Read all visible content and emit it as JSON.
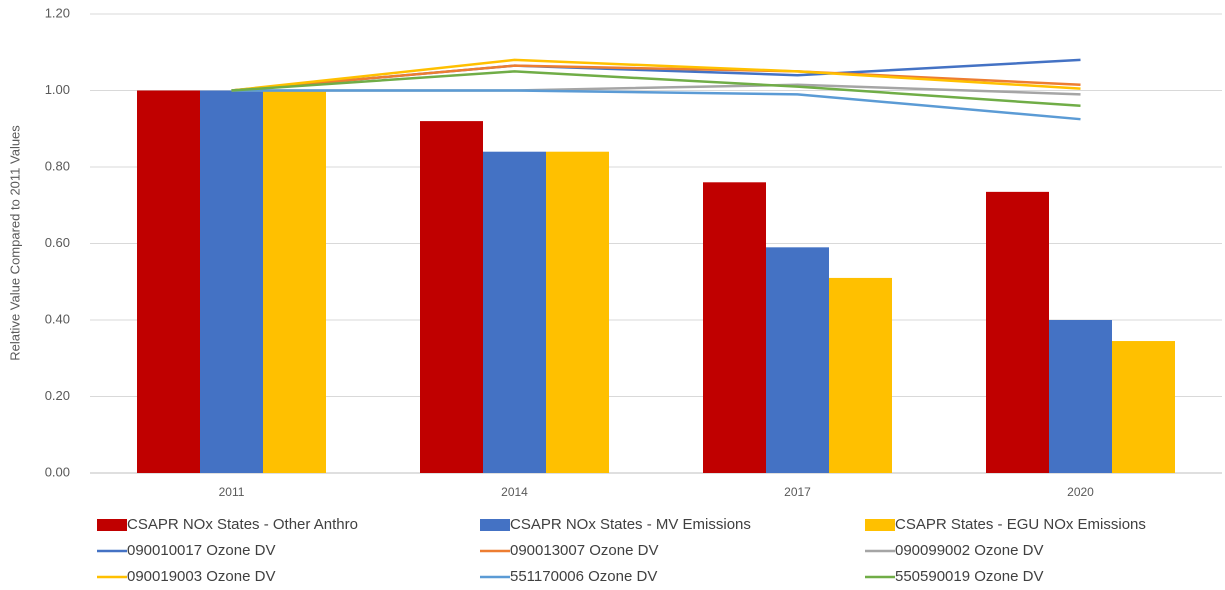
{
  "chart_data": {
    "type": "bar",
    "y_label": "Relative Value Compared to 2011 Values",
    "categories": [
      "2011",
      "2014",
      "2017",
      "2020"
    ],
    "ylim": [
      0,
      1.2
    ],
    "yticks": [
      {
        "value": 0,
        "label": "0.00"
      },
      {
        "value": 0.2,
        "label": "0.20"
      },
      {
        "value": 0.4,
        "label": "0.40"
      },
      {
        "value": 0.6,
        "label": "0.60"
      },
      {
        "value": 0.8,
        "label": "0.80"
      },
      {
        "value": 1.0,
        "label": "1.00"
      },
      {
        "value": 1.2,
        "label": "1.20"
      }
    ],
    "grid": true,
    "legend": "bottom",
    "series": [
      {
        "name": "CSAPR NOx States - Other Anthro",
        "type": "bar",
        "color": "#c00000",
        "values": [
          1.0,
          0.92,
          0.76,
          0.735
        ]
      },
      {
        "name": "CSAPR NOx States - MV Emissions",
        "type": "bar",
        "color": "#4472c4",
        "values": [
          1.0,
          0.84,
          0.59,
          0.4
        ]
      },
      {
        "name": "CSAPR States - EGU NOx Emissions",
        "type": "bar",
        "color": "#ffc000",
        "values": [
          1.0,
          0.84,
          0.51,
          0.345
        ]
      },
      {
        "name": "090010017 Ozone DV",
        "type": "line",
        "color": "#4472c4",
        "values": [
          1.0,
          1.065,
          1.04,
          1.08
        ]
      },
      {
        "name": "090013007 Ozone DV",
        "type": "line",
        "color": "#ed7d31",
        "values": [
          1.0,
          1.065,
          1.05,
          1.015
        ]
      },
      {
        "name": "090099002 Ozone DV",
        "type": "line",
        "color": "#a5a5a5",
        "values": [
          1.0,
          1.0,
          1.015,
          0.99
        ]
      },
      {
        "name": "090019003 Ozone DV",
        "type": "line",
        "color": "#ffc000",
        "values": [
          1.0,
          1.08,
          1.05,
          1.005
        ]
      },
      {
        "name": "551170006 Ozone DV",
        "type": "line",
        "color": "#5b9bd5",
        "values": [
          1.0,
          1.0,
          0.99,
          0.925
        ]
      },
      {
        "name": "550590019 Ozone DV",
        "type": "line",
        "color": "#70ad47",
        "values": [
          1.0,
          1.05,
          1.01,
          0.96
        ]
      }
    ]
  }
}
